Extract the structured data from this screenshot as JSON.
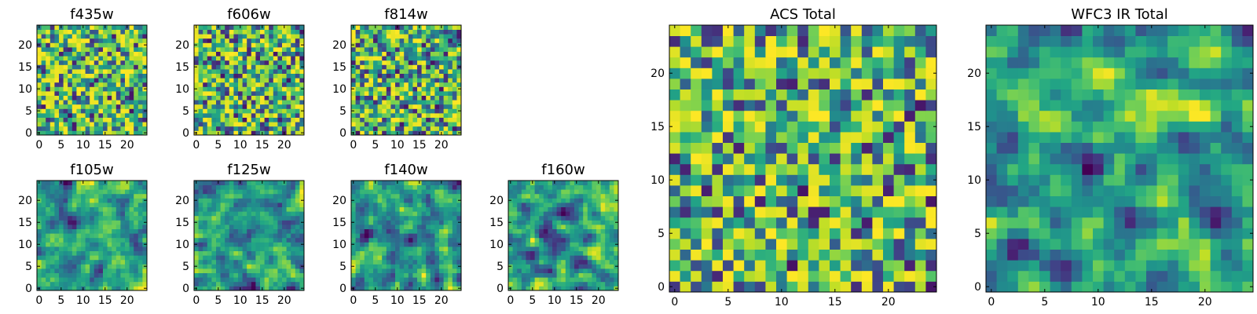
{
  "chart_data": [
    {
      "type": "heatmap",
      "title": "f435w",
      "size": 25,
      "xticks": [
        0,
        5,
        10,
        15,
        20
      ],
      "yticks": [
        0,
        5,
        10,
        15,
        20
      ],
      "xlim": [
        0,
        24
      ],
      "ylim": [
        0,
        24
      ],
      "colormap": "viridis",
      "seed": 11
    },
    {
      "type": "heatmap",
      "title": "f606w",
      "size": 25,
      "xticks": [
        0,
        5,
        10,
        15,
        20
      ],
      "yticks": [
        0,
        5,
        10,
        15,
        20
      ],
      "xlim": [
        0,
        24
      ],
      "ylim": [
        0,
        24
      ],
      "colormap": "viridis",
      "seed": 23
    },
    {
      "type": "heatmap",
      "title": "f814w",
      "size": 25,
      "xticks": [
        0,
        5,
        10,
        15,
        20
      ],
      "yticks": [
        0,
        5,
        10,
        15,
        20
      ],
      "xlim": [
        0,
        24
      ],
      "ylim": [
        0,
        24
      ],
      "colormap": "viridis",
      "seed": 37
    },
    {
      "type": "heatmap",
      "title": "f105w",
      "size": 25,
      "xticks": [
        0,
        5,
        10,
        15,
        20
      ],
      "yticks": [
        0,
        5,
        10,
        15,
        20
      ],
      "xlim": [
        0,
        24
      ],
      "ylim": [
        0,
        24
      ],
      "colormap": "viridis",
      "seed": 41
    },
    {
      "type": "heatmap",
      "title": "f125w",
      "size": 25,
      "xticks": [
        0,
        5,
        10,
        15,
        20
      ],
      "yticks": [
        0,
        5,
        10,
        15,
        20
      ],
      "xlim": [
        0,
        24
      ],
      "ylim": [
        0,
        24
      ],
      "colormap": "viridis",
      "seed": 53
    },
    {
      "type": "heatmap",
      "title": "f140w",
      "size": 25,
      "xticks": [
        0,
        5,
        10,
        15,
        20
      ],
      "yticks": [
        0,
        5,
        10,
        15,
        20
      ],
      "xlim": [
        0,
        24
      ],
      "ylim": [
        0,
        24
      ],
      "colormap": "viridis",
      "seed": 67
    },
    {
      "type": "heatmap",
      "title": "f160w",
      "size": 25,
      "xticks": [
        0,
        5,
        10,
        15,
        20
      ],
      "yticks": [
        0,
        5,
        10,
        15,
        20
      ],
      "xlim": [
        0,
        24
      ],
      "ylim": [
        0,
        24
      ],
      "colormap": "viridis",
      "seed": 71
    },
    {
      "type": "heatmap",
      "title": "ACS Total",
      "size": 25,
      "xticks": [
        0,
        5,
        10,
        15,
        20
      ],
      "yticks": [
        0,
        5,
        10,
        15,
        20
      ],
      "xlim": [
        0,
        24
      ],
      "ylim": [
        0,
        24
      ],
      "colormap": "viridis",
      "seed": 89
    },
    {
      "type": "heatmap",
      "title": "WFC3 IR Total",
      "size": 25,
      "xticks": [
        0,
        5,
        10,
        15,
        20
      ],
      "yticks": [
        0,
        5,
        10,
        15,
        20
      ],
      "xlim": [
        0,
        24
      ],
      "ylim": [
        0,
        24
      ],
      "colormap": "viridis",
      "seed": 97
    }
  ]
}
